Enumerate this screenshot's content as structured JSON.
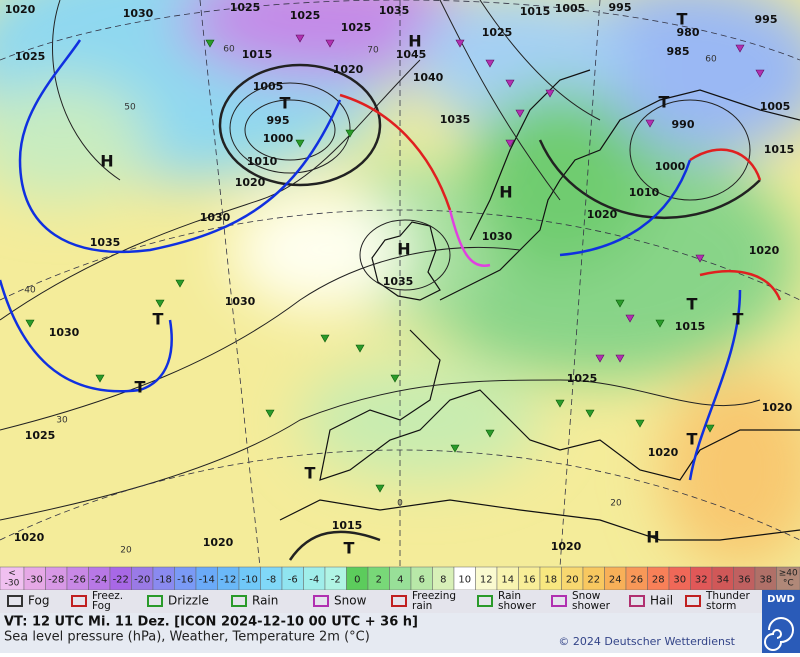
{
  "map": {
    "pressure_labels": [
      1020,
      1030,
      1025,
      1025,
      1035,
      1025,
      1015,
      1005,
      995,
      995,
      1025,
      1015,
      1020,
      1045,
      1040,
      1025,
      980,
      985,
      1005,
      995,
      1000,
      1010,
      1020,
      1035,
      1005,
      1015,
      990,
      1000,
      1010,
      1020,
      1030,
      1035,
      1030,
      1035,
      1020,
      1030,
      1030,
      1015,
      1025,
      1020,
      1025,
      1020,
      1015,
      1020,
      1020,
      1020
    ],
    "centers": [
      "H",
      "H",
      "H",
      "H",
      "H",
      "T",
      "T",
      "T",
      "T",
      "T",
      "T",
      "T",
      "T",
      "T",
      "T"
    ],
    "grid_labels": [
      60,
      50,
      40,
      30,
      20,
      60,
      70,
      0,
      20
    ]
  },
  "scale": {
    "low": [
      "<",
      "-30"
    ],
    "high": [
      "≥40",
      "°C"
    ],
    "low_color": "#f0c0f0",
    "high_color": "#b08878",
    "steps": [
      {
        "value": -30,
        "color": "#e6a8e6"
      },
      {
        "value": -28,
        "color": "#d898e6"
      },
      {
        "value": -26,
        "color": "#c888e6"
      },
      {
        "value": -24,
        "color": "#b878e6"
      },
      {
        "value": -22,
        "color": "#a868e6"
      },
      {
        "value": -20,
        "color": "#9a7ae6"
      },
      {
        "value": -18,
        "color": "#8a8af0"
      },
      {
        "value": -16,
        "color": "#7a9af6"
      },
      {
        "value": -14,
        "color": "#6aaaf8"
      },
      {
        "value": -12,
        "color": "#6ab8f8"
      },
      {
        "value": -10,
        "color": "#70c8f8"
      },
      {
        "value": -8,
        "color": "#80d8f8"
      },
      {
        "value": -6,
        "color": "#90e4f0"
      },
      {
        "value": -4,
        "color": "#a0eeea"
      },
      {
        "value": -2,
        "color": "#b0f4e4"
      },
      {
        "value": 0,
        "color": "#5ccc5c"
      },
      {
        "value": 2,
        "color": "#78d878"
      },
      {
        "value": 4,
        "color": "#98e098"
      },
      {
        "value": 6,
        "color": "#b8e8a8"
      },
      {
        "value": 8,
        "color": "#d8f0b8"
      },
      {
        "value": 10,
        "color": "#ffffff"
      },
      {
        "value": 12,
        "color": "#fafad0"
      },
      {
        "value": 14,
        "color": "#f8f4b0"
      },
      {
        "value": 16,
        "color": "#f8ee98"
      },
      {
        "value": 18,
        "color": "#f8e880"
      },
      {
        "value": 20,
        "color": "#f8d870"
      },
      {
        "value": 22,
        "color": "#f8c860"
      },
      {
        "value": 24,
        "color": "#f8b058"
      },
      {
        "value": 26,
        "color": "#f89858"
      },
      {
        "value": 28,
        "color": "#f88058"
      },
      {
        "value": 30,
        "color": "#f06858"
      },
      {
        "value": 32,
        "color": "#e05858"
      },
      {
        "value": 34,
        "color": "#d05858"
      },
      {
        "value": 36,
        "color": "#c06060"
      },
      {
        "value": 38,
        "color": "#b07068"
      }
    ]
  },
  "legend": [
    {
      "lines": [
        "Fog"
      ]
    },
    {
      "lines": [
        "Freez.",
        "Fog"
      ]
    },
    {
      "lines": [
        "Drizzle"
      ]
    },
    {
      "lines": [
        "Rain"
      ]
    },
    {
      "lines": [
        "Snow"
      ]
    },
    {
      "lines": [
        "Freezing",
        "rain"
      ]
    },
    {
      "lines": [
        "Rain",
        "shower"
      ]
    },
    {
      "lines": [
        "Snow",
        "shower"
      ]
    },
    {
      "lines": [
        "Hail"
      ]
    },
    {
      "lines": [
        "Thunder",
        "storm"
      ]
    }
  ],
  "footer": {
    "valid_time": "VT: 12 UTC Mi.  11 Dez. [ICON 2024-12-10  00 UTC + 36 h]",
    "subtitle": "Sea level pressure (hPa), Weather, Temperature 2m (°C)",
    "copyright": "© 2024 Deutscher Wetterdienst",
    "logo": "DWD"
  }
}
